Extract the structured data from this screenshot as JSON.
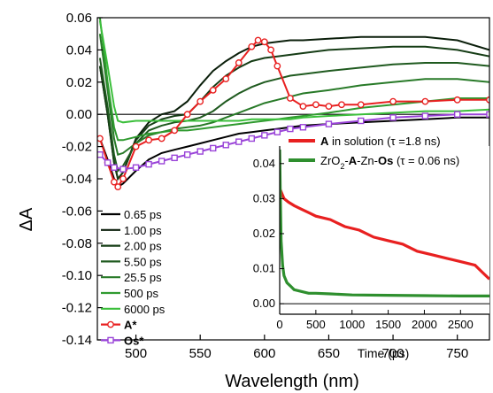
{
  "chart_data": {
    "main": {
      "type": "line",
      "xlabel": "Wavelength (nm)",
      "ylabel": "ΔA",
      "xlim": [
        470,
        775
      ],
      "ylim": [
        -0.14,
        0.06
      ],
      "x_ticks": [
        500,
        550,
        600,
        650,
        700,
        750
      ],
      "x_tick_labels": [
        "500",
        "550",
        "600",
        "650",
        "700",
        "750"
      ],
      "y_ticks": [
        0.06,
        0.04,
        0.02,
        0.0,
        -0.02,
        -0.04,
        -0.06,
        -0.08,
        -0.1,
        -0.12,
        -0.14
      ],
      "y_tick_labels": [
        "0.06",
        "0.04",
        "0.02",
        "0.00",
        "-0.02",
        "-0.04",
        "-0.06",
        "-0.08",
        "-0.10",
        "-0.12",
        "-0.14"
      ],
      "legend_position": "bottom-left",
      "series": [
        {
          "name": "0.65 ps",
          "color": "#000000",
          "x": [
            472,
            478,
            483,
            486,
            490,
            500,
            510,
            520,
            530,
            540,
            550,
            560,
            570,
            580,
            590,
            600,
            610,
            620,
            630,
            650,
            675,
            700,
            725,
            750,
            775
          ],
          "y": [
            -0.015,
            -0.028,
            -0.04,
            -0.045,
            -0.043,
            -0.035,
            -0.028,
            -0.024,
            -0.022,
            -0.02,
            -0.018,
            -0.016,
            -0.014,
            -0.012,
            -0.011,
            -0.01,
            -0.009,
            -0.008,
            -0.007,
            -0.006,
            -0.005,
            -0.004,
            -0.003,
            -0.002,
            -0.002
          ]
        },
        {
          "name": "1.00 ps",
          "color": "#0b1f0b",
          "x": [
            472,
            478,
            483,
            486,
            490,
            500,
            510,
            520,
            530,
            540,
            550,
            560,
            570,
            580,
            590,
            600,
            610,
            620,
            630,
            650,
            675,
            700,
            725,
            750,
            775
          ],
          "y": [
            0.03,
            0.0,
            -0.03,
            -0.04,
            -0.036,
            -0.015,
            -0.005,
            0.0,
            0.002,
            0.008,
            0.018,
            0.027,
            0.033,
            0.038,
            0.042,
            0.044,
            0.045,
            0.046,
            0.046,
            0.047,
            0.048,
            0.048,
            0.048,
            0.046,
            0.04
          ]
        },
        {
          "name": "2.00 ps",
          "color": "#163d16",
          "x": [
            472,
            478,
            483,
            486,
            490,
            500,
            510,
            520,
            530,
            540,
            550,
            560,
            570,
            580,
            590,
            600,
            610,
            620,
            630,
            650,
            675,
            700,
            725,
            750,
            775
          ],
          "y": [
            0.03,
            0.0,
            -0.03,
            -0.04,
            -0.036,
            -0.016,
            -0.007,
            -0.003,
            -0.001,
            0.0,
            0.008,
            0.017,
            0.024,
            0.029,
            0.033,
            0.035,
            0.036,
            0.037,
            0.038,
            0.04,
            0.041,
            0.042,
            0.042,
            0.04,
            0.036
          ]
        },
        {
          "name": "5.50 ps",
          "color": "#1f5a1f",
          "x": [
            472,
            478,
            483,
            486,
            490,
            500,
            510,
            520,
            530,
            540,
            550,
            560,
            570,
            580,
            590,
            600,
            610,
            620,
            630,
            650,
            675,
            700,
            725,
            750,
            775
          ],
          "y": [
            0.035,
            0.005,
            -0.025,
            -0.035,
            -0.032,
            -0.018,
            -0.01,
            -0.007,
            -0.005,
            -0.004,
            -0.002,
            0.002,
            0.008,
            0.013,
            0.017,
            0.02,
            0.022,
            0.024,
            0.025,
            0.027,
            0.029,
            0.031,
            0.032,
            0.032,
            0.03
          ]
        },
        {
          "name": "25.5 ps",
          "color": "#287a28",
          "x": [
            472,
            478,
            483,
            486,
            490,
            500,
            510,
            520,
            530,
            540,
            550,
            560,
            570,
            580,
            590,
            600,
            610,
            620,
            630,
            650,
            675,
            700,
            725,
            750,
            775
          ],
          "y": [
            0.05,
            0.015,
            -0.015,
            -0.025,
            -0.024,
            -0.018,
            -0.013,
            -0.011,
            -0.009,
            -0.008,
            -0.007,
            -0.005,
            -0.002,
            0.001,
            0.004,
            0.007,
            0.009,
            0.011,
            0.013,
            0.015,
            0.018,
            0.02,
            0.022,
            0.022,
            0.02
          ]
        },
        {
          "name": "500 ps",
          "color": "#2f9a2f",
          "x": [
            472,
            478,
            483,
            486,
            490,
            500,
            510,
            520,
            530,
            540,
            550,
            560,
            570,
            580,
            590,
            600,
            610,
            620,
            630,
            650,
            675,
            700,
            725,
            750,
            775
          ],
          "y": [
            0.06,
            0.02,
            -0.008,
            -0.016,
            -0.016,
            -0.014,
            -0.012,
            -0.011,
            -0.01,
            -0.01,
            -0.009,
            -0.008,
            -0.007,
            -0.006,
            -0.005,
            -0.004,
            -0.003,
            -0.002,
            -0.001,
            0.001,
            0.004,
            0.006,
            0.008,
            0.01,
            0.01
          ]
        },
        {
          "name": "6000 ps",
          "color": "#3bbf3b",
          "x": [
            472,
            478,
            483,
            486,
            490,
            500,
            510,
            520,
            530,
            540,
            550,
            560,
            570,
            580,
            590,
            600,
            610,
            620,
            630,
            650,
            675,
            700,
            725,
            750,
            775
          ],
          "y": [
            0.058,
            0.03,
            0.005,
            -0.004,
            -0.005,
            -0.004,
            -0.004,
            -0.004,
            -0.004,
            -0.004,
            -0.004,
            -0.004,
            -0.004,
            -0.004,
            -0.003,
            -0.003,
            -0.003,
            -0.003,
            -0.002,
            -0.001,
            0.0,
            0.001,
            0.002,
            0.002,
            0.003
          ]
        },
        {
          "name": "A*",
          "color": "#e82020",
          "marker": "circle",
          "x": [
            472,
            478,
            483,
            486,
            490,
            500,
            510,
            520,
            530,
            540,
            550,
            560,
            570,
            580,
            590,
            595,
            600,
            605,
            610,
            620,
            630,
            640,
            650,
            660,
            675,
            700,
            725,
            750,
            775
          ],
          "y": [
            -0.015,
            -0.03,
            -0.042,
            -0.045,
            -0.04,
            -0.02,
            -0.016,
            -0.015,
            -0.01,
            0.0,
            0.008,
            0.015,
            0.022,
            0.032,
            0.042,
            0.046,
            0.045,
            0.04,
            0.03,
            0.01,
            0.005,
            0.006,
            0.005,
            0.006,
            0.006,
            0.008,
            0.008,
            0.009,
            0.009
          ]
        },
        {
          "name": "Os*",
          "color": "#9a44d8",
          "marker": "square",
          "x": [
            472,
            478,
            483,
            490,
            500,
            510,
            520,
            530,
            540,
            550,
            560,
            570,
            580,
            590,
            600,
            610,
            620,
            630,
            650,
            675,
            700,
            725,
            750,
            775
          ],
          "y": [
            -0.025,
            -0.03,
            -0.033,
            -0.034,
            -0.033,
            -0.031,
            -0.029,
            -0.027,
            -0.025,
            -0.023,
            -0.021,
            -0.019,
            -0.017,
            -0.015,
            -0.013,
            -0.011,
            -0.009,
            -0.008,
            -0.006,
            -0.004,
            -0.002,
            -0.001,
            0.0,
            0.0
          ]
        }
      ]
    },
    "inset": {
      "type": "line",
      "xlabel": "Time (ps)",
      "xlim": [
        0,
        2900
      ],
      "ylim": [
        -0.003,
        0.045
      ],
      "x_ticks": [
        0,
        500,
        1000,
        1500,
        2000,
        2500
      ],
      "x_tick_labels": [
        "0",
        "500",
        "1000",
        "1500",
        "2000",
        "2500"
      ],
      "y_ticks": [
        0.0,
        0.01,
        0.02,
        0.03,
        0.04
      ],
      "y_tick_labels": [
        "0.00",
        "0.01",
        "0.02",
        "0.03",
        "0.04"
      ],
      "legend_position": "top-right",
      "series": [
        {
          "name_bold": "A",
          "name_rest": " in solution (τ =1.8 ns)",
          "color": "#e82020",
          "x": [
            0,
            20,
            60,
            120,
            200,
            300,
            400,
            500,
            700,
            900,
            1100,
            1300,
            1500,
            1700,
            1900,
            2100,
            2300,
            2500,
            2700,
            2800,
            2900
          ],
          "y": [
            0.031,
            0.032,
            0.03,
            0.029,
            0.028,
            0.027,
            0.026,
            0.025,
            0.024,
            0.022,
            0.021,
            0.019,
            0.018,
            0.017,
            0.015,
            0.014,
            0.013,
            0.012,
            0.011,
            0.009,
            0.007
          ]
        },
        {
          "name_parts": [
            "ZrO",
            "2",
            "-",
            "A",
            "-Zn-",
            "Os",
            " (τ = 0.06 ns)"
          ],
          "color": "#2e8f2e",
          "x": [
            0,
            10,
            20,
            40,
            60,
            100,
            150,
            200,
            300,
            400,
            500,
            700,
            1000,
            1500,
            2000,
            2500,
            2900
          ],
          "y": [
            0.044,
            0.03,
            0.018,
            0.011,
            0.008,
            0.006,
            0.005,
            0.004,
            0.0035,
            0.003,
            0.003,
            0.0028,
            0.0025,
            0.0024,
            0.0023,
            0.0022,
            0.0022
          ]
        }
      ]
    }
  }
}
